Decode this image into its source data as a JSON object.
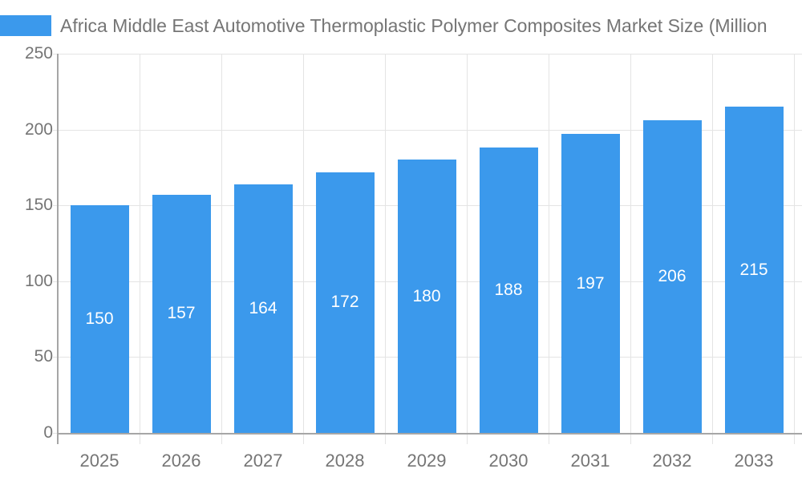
{
  "chart_data": {
    "type": "bar",
    "title": "Africa Middle East Automotive Thermoplastic Polymer Composites Market Size (Million",
    "categories": [
      "2025",
      "2026",
      "2027",
      "2028",
      "2029",
      "2030",
      "2031",
      "2032",
      "2033"
    ],
    "values": [
      150,
      157,
      164,
      172,
      180,
      188,
      197,
      206,
      215
    ],
    "series_name": "Africa Middle East Automotive Thermoplastic Polymer Composites Market Size (Million",
    "xlabel": "",
    "ylabel": "",
    "ylim": [
      0,
      250
    ],
    "y_tick_labels": [
      "250",
      "200",
      "150",
      "100",
      "50",
      "0"
    ],
    "grid": true,
    "legend_position": "top-left",
    "colors": {
      "bar": "#3b99ec",
      "label_text": "#757575",
      "bar_value_text": "#ffffff",
      "axis_line": "#a6a6a6",
      "gridline": "#e4e4e4",
      "background": "#ffffff"
    }
  }
}
